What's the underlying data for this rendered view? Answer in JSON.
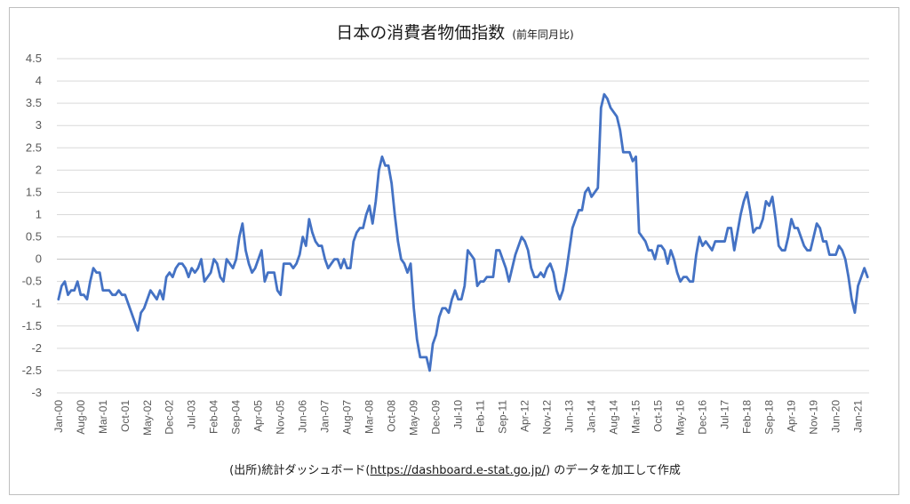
{
  "chart_data": {
    "type": "line",
    "title": "日本の消費者物価指数",
    "subtitle": "(前年同月比)",
    "source_text": "(出所)統計ダッシュボード(",
    "source_link": "https://dashboard.e-stat.go.jp/",
    "source_suffix": ") のデータを加工して作成",
    "ylim": [
      -3,
      4.5
    ],
    "y_ticks": [
      -3,
      -2.5,
      -2,
      -1.5,
      -1,
      -0.5,
      0,
      0.5,
      1,
      1.5,
      2,
      2.5,
      3,
      3.5,
      4,
      4.5
    ],
    "y_tick_labels": [
      "-3",
      "-2.5",
      "-2",
      "-1.5",
      "-1",
      "-0.5",
      "0",
      "0.5",
      "1",
      "1.5",
      "2",
      "2.5",
      "3",
      "3.5",
      "4",
      "4.5"
    ],
    "x_tick_labels": [
      "Jan-00",
      "Aug-00",
      "Mar-01",
      "Oct-01",
      "May-02",
      "Dec-02",
      "Jul-03",
      "Feb-04",
      "Sep-04",
      "Apr-05",
      "Nov-05",
      "Jun-06",
      "Jan-07",
      "Aug-07",
      "Mar-08",
      "Oct-08",
      "May-09",
      "Dec-09",
      "Jul-10",
      "Feb-11",
      "Sep-11",
      "Apr-12",
      "Nov-12",
      "Jun-13",
      "Jan-14",
      "Aug-14",
      "Mar-15",
      "Oct-15",
      "May-16",
      "Dec-16",
      "Jul-17",
      "Feb-18",
      "Sep-18",
      "Apr-19",
      "Nov-19",
      "Jun-20",
      "Jan-21"
    ],
    "x_tick_months": [
      0,
      7,
      14,
      21,
      28,
      35,
      42,
      49,
      56,
      63,
      70,
      77,
      84,
      91,
      98,
      105,
      112,
      119,
      126,
      133,
      140,
      147,
      154,
      161,
      168,
      175,
      182,
      189,
      196,
      203,
      210,
      217,
      224,
      231,
      238,
      245,
      252
    ],
    "grid": true,
    "legend": "none",
    "series": [
      {
        "color": "#4472C4",
        "start": "Jan-00",
        "frequency": "monthly",
        "values": [
          -0.9,
          -0.6,
          -0.5,
          -0.8,
          -0.7,
          -0.7,
          -0.5,
          -0.8,
          -0.8,
          -0.9,
          -0.5,
          -0.2,
          -0.3,
          -0.3,
          -0.7,
          -0.7,
          -0.7,
          -0.8,
          -0.8,
          -0.7,
          -0.8,
          -0.8,
          -1.0,
          -1.2,
          -1.4,
          -1.6,
          -1.2,
          -1.1,
          -0.9,
          -0.7,
          -0.8,
          -0.9,
          -0.7,
          -0.9,
          -0.4,
          -0.3,
          -0.4,
          -0.2,
          -0.1,
          -0.1,
          -0.2,
          -0.4,
          -0.2,
          -0.3,
          -0.2,
          0.0,
          -0.5,
          -0.4,
          -0.3,
          0.0,
          -0.1,
          -0.4,
          -0.5,
          0.0,
          -0.1,
          -0.2,
          0.0,
          0.5,
          0.8,
          0.2,
          -0.1,
          -0.3,
          -0.2,
          0.0,
          0.2,
          -0.5,
          -0.3,
          -0.3,
          -0.3,
          -0.7,
          -0.8,
          -0.1,
          -0.1,
          -0.1,
          -0.2,
          -0.1,
          0.1,
          0.5,
          0.3,
          0.9,
          0.6,
          0.4,
          0.3,
          0.3,
          0.0,
          -0.2,
          -0.1,
          0.0,
          0.0,
          -0.2,
          0.0,
          -0.2,
          -0.2,
          0.4,
          0.6,
          0.7,
          0.7,
          1.0,
          1.2,
          0.8,
          1.3,
          2.0,
          2.3,
          2.1,
          2.1,
          1.7,
          1.0,
          0.4,
          0.0,
          -0.1,
          -0.3,
          -0.1,
          -1.1,
          -1.8,
          -2.2,
          -2.2,
          -2.2,
          -2.5,
          -1.9,
          -1.7,
          -1.3,
          -1.1,
          -1.1,
          -1.2,
          -0.9,
          -0.7,
          -0.9,
          -0.9,
          -0.6,
          0.2,
          0.1,
          0.0,
          -0.6,
          -0.5,
          -0.5,
          -0.4,
          -0.4,
          -0.4,
          0.2,
          0.2,
          0.0,
          -0.2,
          -0.5,
          -0.2,
          0.1,
          0.3,
          0.5,
          0.4,
          0.2,
          -0.2,
          -0.4,
          -0.4,
          -0.3,
          -0.4,
          -0.2,
          -0.1,
          -0.3,
          -0.7,
          -0.9,
          -0.7,
          -0.3,
          0.2,
          0.7,
          0.9,
          1.1,
          1.1,
          1.5,
          1.6,
          1.4,
          1.5,
          1.6,
          3.4,
          3.7,
          3.6,
          3.4,
          3.3,
          3.2,
          2.9,
          2.4,
          2.4,
          2.4,
          2.2,
          2.3,
          0.6,
          0.5,
          0.4,
          0.2,
          0.2,
          0.0,
          0.3,
          0.3,
          0.2,
          -0.1,
          0.2,
          0.0,
          -0.3,
          -0.5,
          -0.4,
          -0.4,
          -0.5,
          -0.5,
          0.1,
          0.5,
          0.3,
          0.4,
          0.3,
          0.2,
          0.4,
          0.4,
          0.4,
          0.4,
          0.7,
          0.7,
          0.2,
          0.6,
          1.0,
          1.3,
          1.5,
          1.1,
          0.6,
          0.7,
          0.7,
          0.9,
          1.3,
          1.2,
          1.4,
          0.9,
          0.3,
          0.2,
          0.2,
          0.5,
          0.9,
          0.7,
          0.7,
          0.5,
          0.3,
          0.2,
          0.2,
          0.5,
          0.8,
          0.7,
          0.4,
          0.4,
          0.1,
          0.1,
          0.1,
          0.3,
          0.2,
          0.0,
          -0.4,
          -0.9,
          -1.2,
          -0.6,
          -0.4,
          -0.2,
          -0.4
        ]
      }
    ]
  }
}
